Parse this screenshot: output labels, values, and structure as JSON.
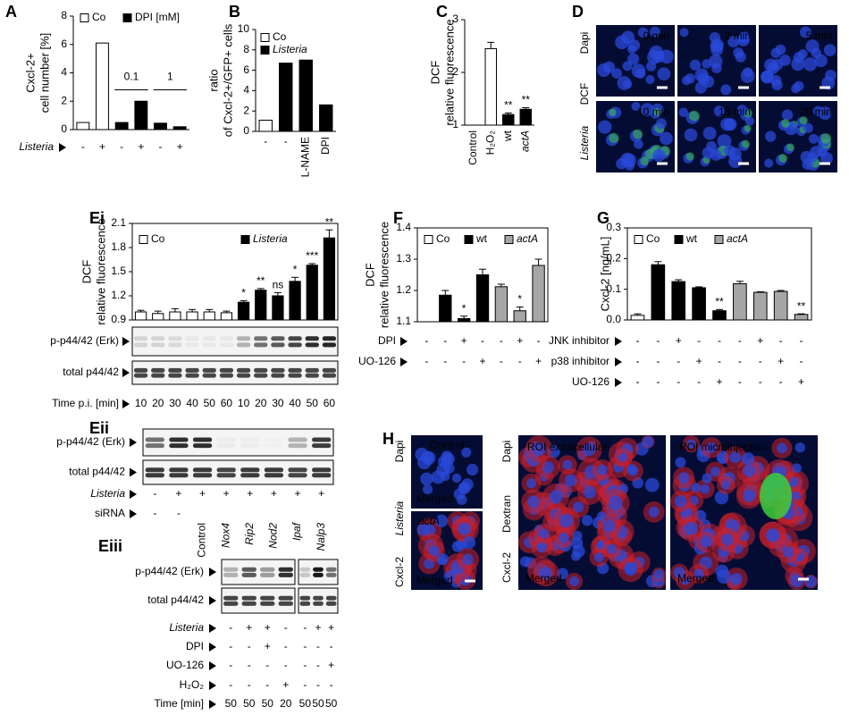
{
  "panel_letters": [
    "A",
    "B",
    "C",
    "D",
    "Ei",
    "F",
    "G",
    "Eii",
    "Eiii",
    "H"
  ],
  "chart_data": [
    {
      "type": "bar",
      "ylabel": [
        "Cxcl-2+",
        "cell number [%]"
      ],
      "ylim": [
        0,
        8
      ],
      "yticks": [
        0,
        2,
        4,
        6,
        8
      ],
      "values": [
        0.5,
        6.1,
        0.5,
        2.0,
        0.45,
        0.2
      ],
      "colors": [
        "#ffffff",
        "#ffffff",
        "#000000",
        "#000000",
        "#000000",
        "#000000"
      ],
      "legend": [
        {
          "name": "Co",
          "color": "#ffffff"
        },
        {
          "name": "DPI [mM]",
          "color": "#000000"
        }
      ],
      "group_labels": [
        "0.1",
        "1"
      ],
      "conditions": [
        {
          "label": "Listeria",
          "signs": [
            "-",
            "+",
            "-",
            "+",
            "-",
            "+"
          ]
        }
      ]
    },
    {
      "type": "bar",
      "ylabel": [
        "ratio",
        "of Cxcl-2+/GFP+ cells"
      ],
      "ylim": [
        0,
        10
      ],
      "yticks": [
        0,
        2,
        4,
        6,
        8,
        10
      ],
      "categories": [
        "-",
        "-",
        "L-NAME",
        "DPI"
      ],
      "values": [
        1.1,
        6.7,
        7.0,
        2.6
      ],
      "colors": [
        "#ffffff",
        "#000000",
        "#000000",
        "#000000"
      ],
      "legend": [
        {
          "name": "Co",
          "color": "#ffffff"
        },
        {
          "name": "Listeria",
          "color": "#000000"
        }
      ]
    },
    {
      "type": "bar",
      "ylabel": [
        "DCF",
        "relative fluorescence"
      ],
      "ylim": [
        1,
        3
      ],
      "yticks": [
        1,
        2,
        3
      ],
      "categories": [
        "Control",
        "H₂O₂",
        "wt",
        "actA"
      ],
      "values": [
        1.0,
        2.45,
        1.2,
        1.3
      ],
      "errors": [
        0,
        0.12,
        0.03,
        0.03
      ],
      "colors": [
        "#ffffff",
        "#ffffff",
        "#000000",
        "#000000"
      ],
      "bar_labels": [
        null,
        null,
        "**",
        "**"
      ]
    },
    {
      "type": "bar",
      "ylabel": [
        "DCF",
        "relative fluorescence"
      ],
      "ylim": [
        0.9,
        2.1
      ],
      "yticks": [
        0.9,
        1.2,
        1.5,
        1.8,
        2.1
      ],
      "values": [
        1.0,
        0.98,
        1.0,
        1.0,
        1.0,
        0.99,
        1.12,
        1.27,
        1.2,
        1.38,
        1.58,
        1.92
      ],
      "errors": [
        0.02,
        0.03,
        0.04,
        0.03,
        0.03,
        0.02,
        0.02,
        0.02,
        0.04,
        0.05,
        0.02,
        0.1
      ],
      "colors": [
        "#ffffff",
        "#ffffff",
        "#ffffff",
        "#ffffff",
        "#ffffff",
        "#ffffff",
        "#000000",
        "#000000",
        "#000000",
        "#000000",
        "#000000",
        "#000000"
      ],
      "bar_labels": [
        null,
        null,
        null,
        null,
        null,
        null,
        "*",
        "**",
        "ns",
        "*",
        "***",
        "**"
      ],
      "legend": [
        {
          "name": "Co",
          "color": "#ffffff"
        },
        {
          "name": "Listeria",
          "color": "#000000"
        }
      ]
    },
    {
      "type": "bar",
      "ylabel": [
        "DCF",
        "relative fluorescence"
      ],
      "ylim": [
        1.1,
        1.4
      ],
      "yticks": [
        1.1,
        1.2,
        1.3,
        1.4
      ],
      "values": [
        1.1,
        1.185,
        1.11,
        1.25,
        1.212,
        1.135,
        1.28
      ],
      "errors": [
        0,
        0.015,
        0.008,
        0.018,
        0.008,
        0.012,
        0.02
      ],
      "colors": [
        "#ffffff",
        "#000000",
        "#000000",
        "#000000",
        "#a6a6a6",
        "#a6a6a6",
        "#a6a6a6"
      ],
      "bar_labels": [
        null,
        null,
        "*",
        null,
        null,
        "*",
        null
      ],
      "legend": [
        {
          "name": "Co",
          "color": "#ffffff"
        },
        {
          "name": "wt",
          "color": "#000000"
        },
        {
          "name": "actA",
          "color": "#a6a6a6"
        }
      ],
      "conditions": [
        {
          "label": "DPI",
          "signs": [
            "-",
            "-",
            "+",
            "-",
            "-",
            "+",
            "-"
          ]
        },
        {
          "label": "UO-126",
          "signs": [
            "-",
            "-",
            "-",
            "+",
            "-",
            "-",
            "+"
          ]
        }
      ]
    },
    {
      "type": "bar",
      "ylabel": [
        "Cxcl-2 [ng/mL]"
      ],
      "ylim": [
        0,
        0.3
      ],
      "yticks": [
        {
          "value": 0,
          "label": "0.0"
        },
        0.1,
        0.2,
        0.3
      ],
      "values": [
        0.015,
        0.18,
        0.125,
        0.105,
        0.03,
        0.118,
        0.09,
        0.093,
        0.018
      ],
      "errors": [
        0.005,
        0.01,
        0.006,
        0.003,
        0.004,
        0.008,
        0.002,
        0.003,
        0.002
      ],
      "colors": [
        "#ffffff",
        "#000000",
        "#000000",
        "#000000",
        "#000000",
        "#a6a6a6",
        "#a6a6a6",
        "#a6a6a6",
        "#a6a6a6"
      ],
      "bar_labels": [
        null,
        null,
        null,
        null,
        "**",
        null,
        null,
        null,
        "**"
      ],
      "legend": [
        {
          "name": "Co",
          "color": "#ffffff"
        },
        {
          "name": "wt",
          "color": "#000000"
        },
        {
          "name": "actA",
          "color": "#a6a6a6"
        }
      ],
      "conditions": [
        {
          "label": "JNK inhibitor",
          "signs": [
            "-",
            "-",
            "+",
            "-",
            "-",
            "-",
            "+",
            "-",
            "-"
          ]
        },
        {
          "label": "p38 inhibitor",
          "signs": [
            "-",
            "-",
            "-",
            "+",
            "-",
            "-",
            "-",
            "+",
            "-"
          ]
        },
        {
          "label": "UO-126",
          "signs": [
            "-",
            "-",
            "-",
            "-",
            "+",
            "-",
            "-",
            "-",
            "+"
          ]
        }
      ]
    }
  ],
  "blots": {
    "Ei": {
      "rows": [
        "p-p44/42 (Erk)",
        "total p44/42"
      ],
      "conditions": [
        {
          "label": "Time p.i. [min]",
          "signs": [
            10,
            20,
            30,
            40,
            50,
            60,
            10,
            20,
            30,
            40,
            50,
            60
          ]
        }
      ]
    },
    "Eii": {
      "rows": [
        "p-p44/42 (Erk)",
        "total p44/42"
      ],
      "conditions": [
        {
          "label": "Listeria",
          "signs": [
            "-",
            "+",
            "+",
            "+",
            "+",
            "+",
            "+",
            "+"
          ]
        },
        {
          "label": "siRNA",
          "signs": [
            "-",
            "-",
            "Control",
            "Nox4",
            "Rip2",
            "Nod2",
            "Ipaf",
            "Nalp3"
          ]
        }
      ]
    },
    "Eiii": {
      "rows": [
        "p-p44/42 (Erk)",
        "total p44/42"
      ],
      "conditions": [
        {
          "label": "Listeria",
          "signs": [
            "-",
            "+",
            "+",
            "-",
            "-",
            "+",
            "+"
          ]
        },
        {
          "label": "DPI",
          "signs": [
            "-",
            "-",
            "+",
            "-",
            "-",
            "-",
            "-"
          ]
        },
        {
          "label": "UO-126",
          "signs": [
            "-",
            "-",
            "-",
            "-",
            "-",
            "-",
            "+"
          ]
        },
        {
          "label": "H₂O₂",
          "signs": [
            "-",
            "-",
            "-",
            "+",
            "-",
            "-",
            "-"
          ]
        },
        {
          "label": "Time [min]",
          "signs": [
            50,
            50,
            50,
            20,
            50,
            50,
            50
          ]
        }
      ]
    }
  },
  "micrographs": {
    "D": {
      "channels": [
        "Dapi",
        "DCF",
        "Listeria"
      ],
      "times": [
        "0 min",
        "2 min",
        "5 min",
        "10 min",
        "15 min",
        "20 min"
      ]
    },
    "H": {
      "left_channels": [
        "Dapi",
        "Listeria",
        "Cxcl-2"
      ],
      "left_tiles": [
        {
          "title": "Control",
          "caption": "Merged"
        },
        {
          "title": "actA",
          "caption": "Merged"
        }
      ],
      "right_channels": [
        "Dapi",
        "Dextran",
        "Cxcl-2"
      ],
      "right_tiles": [
        {
          "title": "ROI extracellular",
          "caption": "Merged"
        },
        {
          "title": "ROI microinjection",
          "caption": "Merged"
        }
      ]
    }
  }
}
